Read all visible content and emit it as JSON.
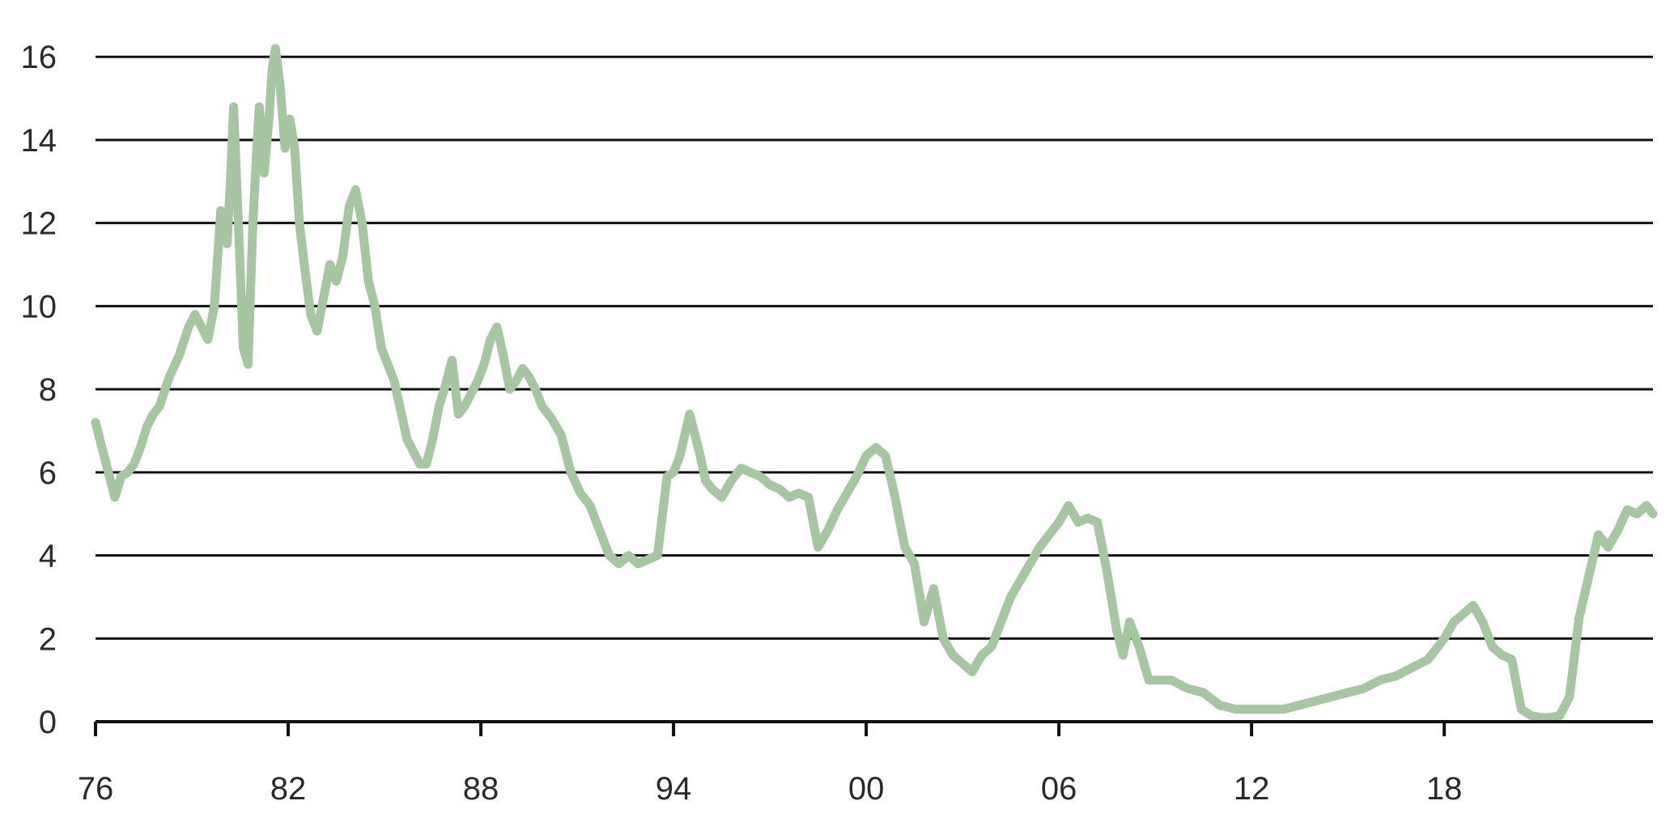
{
  "chart_data": {
    "type": "line",
    "title": "",
    "xlabel": "",
    "ylabel": "",
    "xlim": [
      1976,
      2024.5
    ],
    "ylim": [
      0,
      16.9
    ],
    "grid": true,
    "legend": "none",
    "y_ticks": [
      0,
      2,
      4,
      6,
      8,
      10,
      12,
      14,
      16
    ],
    "y_tick_labels": [
      "0",
      "2",
      "4",
      "6",
      "8",
      "10",
      "12",
      "14",
      "16"
    ],
    "x_ticks": [
      1976,
      1982,
      1988,
      1994,
      2000,
      2006,
      2012,
      2018
    ],
    "x_tick_labels": [
      "76",
      "82",
      "88",
      "94",
      "00",
      "06",
      "12",
      "18"
    ],
    "colors": {
      "series": "#a5c6a0",
      "grid": "#111111",
      "text": "#2a2a2a"
    },
    "series": [
      {
        "x": [
          1976.0,
          1976.2,
          1976.4,
          1976.6,
          1976.8,
          1977.0,
          1977.2,
          1977.4,
          1977.6,
          1977.8,
          1978.0,
          1978.3,
          1978.6,
          1978.9,
          1979.1,
          1979.3,
          1979.5,
          1979.7,
          1979.9,
          1980.1,
          1980.2,
          1980.3,
          1980.45,
          1980.6,
          1980.75,
          1980.9,
          1981.0,
          1981.1,
          1981.25,
          1981.4,
          1981.5,
          1981.6,
          1981.75,
          1981.9,
          1982.05,
          1982.2,
          1982.35,
          1982.5,
          1982.7,
          1982.9,
          1983.1,
          1983.3,
          1983.5,
          1983.7,
          1983.9,
          1984.1,
          1984.3,
          1984.5,
          1984.7,
          1984.9,
          1985.1,
          1985.3,
          1985.5,
          1985.7,
          1985.9,
          1986.1,
          1986.3,
          1986.5,
          1986.7,
          1986.9,
          1987.1,
          1987.3,
          1987.5,
          1987.7,
          1987.9,
          1988.1,
          1988.3,
          1988.5,
          1988.7,
          1988.9,
          1989.1,
          1989.3,
          1989.5,
          1989.7,
          1989.9,
          1990.2,
          1990.5,
          1990.8,
          1991.1,
          1991.4,
          1991.7,
          1992.0,
          1992.3,
          1992.6,
          1992.9,
          1993.2,
          1993.5,
          1993.8,
          1994.0,
          1994.2,
          1994.5,
          1994.8,
          1995.0,
          1995.2,
          1995.5,
          1995.8,
          1996.1,
          1996.4,
          1996.7,
          1997.0,
          1997.3,
          1997.6,
          1997.9,
          1998.2,
          1998.5,
          1998.8,
          1999.1,
          1999.4,
          1999.7,
          2000.0,
          2000.3,
          2000.6,
          2000.9,
          2001.2,
          2001.5,
          2001.8,
          2002.1,
          2002.4,
          2002.7,
          2003.0,
          2003.3,
          2003.6,
          2003.9,
          2004.2,
          2004.5,
          2004.8,
          2005.1,
          2005.4,
          2005.7,
          2006.0,
          2006.3,
          2006.6,
          2006.9,
          2007.2,
          2007.5,
          2007.8,
          2008.0,
          2008.2,
          2008.5,
          2008.8,
          2009.1,
          2009.5,
          2010.0,
          2010.5,
          2011.0,
          2011.5,
          2012.0,
          2012.5,
          2013.0,
          2013.5,
          2014.0,
          2014.5,
          2015.0,
          2015.5,
          2016.0,
          2016.5,
          2017.0,
          2017.5,
          2018.0,
          2018.3,
          2018.6,
          2018.9,
          2019.2,
          2019.5,
          2019.8,
          2020.1,
          2020.4,
          2020.7,
          2021.0,
          2021.3,
          2021.6,
          2021.9,
          2022.2,
          2022.5,
          2022.8,
          2023.1,
          2023.4,
          2023.7,
          2024.0,
          2024.3,
          2024.5
        ],
        "values": [
          7.2,
          6.6,
          6.0,
          5.4,
          5.9,
          6.0,
          6.2,
          6.6,
          7.1,
          7.4,
          7.6,
          8.3,
          8.8,
          9.5,
          9.8,
          9.5,
          9.2,
          10.0,
          12.3,
          11.5,
          13.0,
          14.8,
          12.0,
          9.0,
          8.6,
          12.0,
          13.5,
          14.8,
          13.2,
          14.5,
          15.7,
          16.2,
          15.3,
          13.8,
          14.5,
          13.8,
          12.0,
          11.0,
          9.8,
          9.4,
          10.2,
          11.0,
          10.6,
          11.2,
          12.4,
          12.8,
          12.0,
          10.6,
          10.0,
          9.0,
          8.6,
          8.2,
          7.5,
          6.8,
          6.5,
          6.2,
          6.2,
          6.8,
          7.6,
          8.1,
          8.7,
          7.4,
          7.6,
          7.9,
          8.2,
          8.6,
          9.2,
          9.5,
          8.8,
          8.0,
          8.2,
          8.5,
          8.3,
          8.0,
          7.6,
          7.3,
          6.9,
          6.0,
          5.5,
          5.2,
          4.6,
          4.0,
          3.8,
          4.0,
          3.8,
          3.9,
          4.0,
          5.9,
          6.0,
          6.4,
          7.4,
          6.5,
          5.8,
          5.6,
          5.4,
          5.8,
          6.1,
          6.0,
          5.9,
          5.7,
          5.6,
          5.4,
          5.5,
          5.4,
          4.2,
          4.6,
          5.1,
          5.5,
          5.9,
          6.4,
          6.6,
          6.4,
          5.4,
          4.2,
          3.8,
          2.4,
          3.2,
          2.0,
          1.6,
          1.4,
          1.2,
          1.6,
          1.8,
          2.4,
          3.0,
          3.4,
          3.8,
          4.2,
          4.5,
          4.8,
          5.2,
          4.8,
          4.9,
          4.8,
          3.6,
          2.2,
          1.6,
          2.4,
          1.8,
          1.0,
          1.0,
          1.0,
          0.8,
          0.7,
          0.4,
          0.3,
          0.3,
          0.3,
          0.3,
          0.4,
          0.5,
          0.6,
          0.7,
          0.8,
          1.0,
          1.1,
          1.3,
          1.5,
          2.0,
          2.4,
          2.6,
          2.8,
          2.4,
          1.8,
          1.6,
          1.5,
          0.3,
          0.15,
          0.1,
          0.1,
          0.15,
          0.6,
          2.5,
          3.5,
          4.5,
          4.2,
          4.6,
          5.1,
          5.0,
          5.2,
          5.0
        ]
      }
    ]
  }
}
